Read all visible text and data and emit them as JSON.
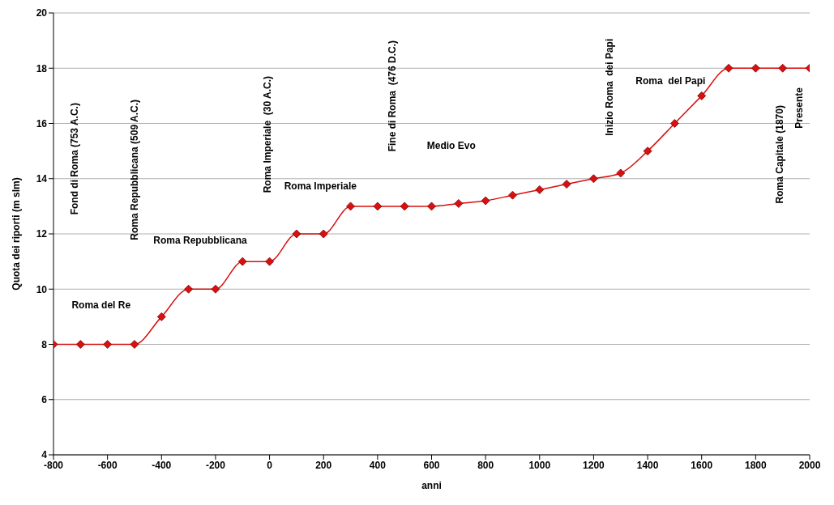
{
  "chart_data": {
    "type": "line",
    "xlabel": "anni",
    "ylabel": "Quota dei riporti (m slm)",
    "x": [
      -800,
      -700,
      -600,
      -500,
      -400,
      -300,
      -200,
      -100,
      0,
      100,
      200,
      300,
      400,
      500,
      600,
      700,
      800,
      900,
      1000,
      1100,
      1200,
      1300,
      1400,
      1500,
      1600,
      1700,
      1800,
      1900,
      2000
    ],
    "series": [
      {
        "color": "#d81010",
        "values": [
          8,
          8,
          8,
          8,
          9,
          10,
          10,
          11,
          11,
          12,
          12,
          13,
          13,
          13,
          13,
          13.1,
          13.2,
          13.4,
          13.6,
          13.8,
          14,
          14.2,
          15,
          16,
          17,
          18,
          18,
          18,
          18
        ]
      }
    ],
    "xlim": [
      -800,
      2000
    ],
    "xticks": [
      -800,
      -600,
      -400,
      -200,
      0,
      200,
      400,
      600,
      800,
      1000,
      1200,
      1400,
      1600,
      1800,
      2000
    ],
    "ylim": [
      4,
      20
    ],
    "yticks": [
      4,
      6,
      8,
      10,
      12,
      14,
      16,
      18,
      20
    ],
    "grid": "y",
    "marker": "diamond",
    "line_style": "solid",
    "annotations": [
      "Fond di Roma (753 A.C.)",
      "Roma Repubblicana (509 A.C.)",
      "Roma Imperiale  (30 A.C.)",
      "Fine di Roma  (476 D.C.)",
      "Inizio Roma  dei Papi",
      "Roma Capitale (1870)",
      "Presente",
      "Roma del Re",
      "Roma Repubblicana",
      "Roma Imperiale",
      "Medio Evo",
      "Roma  del Papi"
    ]
  }
}
